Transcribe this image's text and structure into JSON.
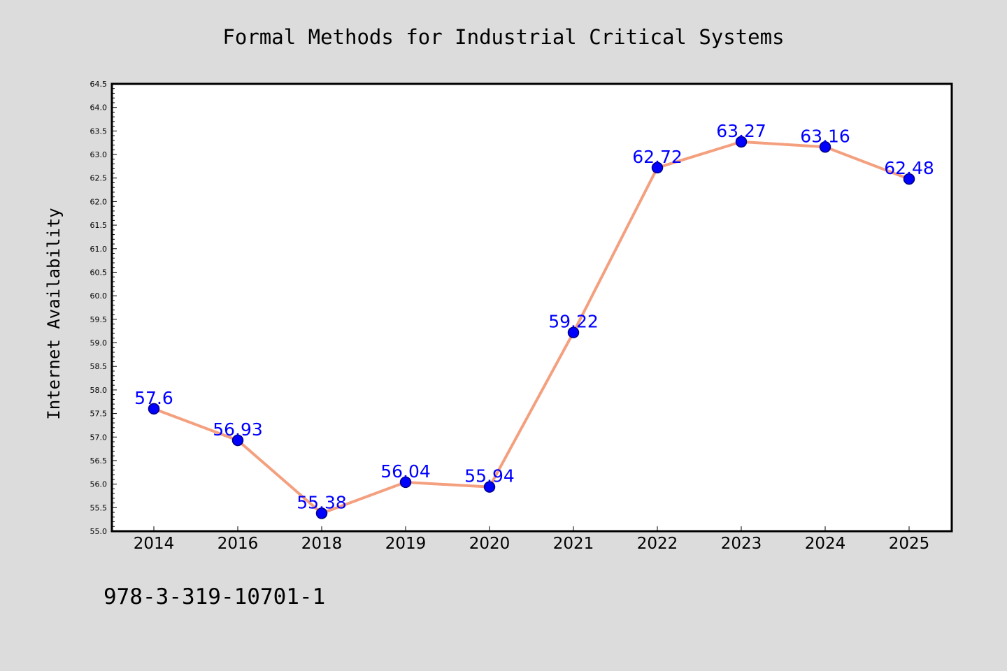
{
  "colors": {
    "background": "#dcdcdc",
    "plot_background": "#ffffff",
    "line": "#f4a07f",
    "marker_fill": "#0000ff",
    "marker_edge": "#000080",
    "data_label": "#0000ff"
  },
  "footnote": "978-3-319-10701-1",
  "chart_data": {
    "type": "line",
    "title": "Formal Methods for Industrial Critical Systems",
    "xlabel": "",
    "ylabel": "Internet Availability",
    "categories": [
      "2014",
      "2016",
      "2018",
      "2019",
      "2020",
      "2021",
      "2022",
      "2023",
      "2024",
      "2025"
    ],
    "series": [
      {
        "values": [
          57.6,
          56.93,
          55.38,
          56.04,
          55.94,
          59.22,
          62.72,
          63.27,
          63.16,
          62.48
        ],
        "labels": [
          "57.6",
          "56.93",
          "55.38",
          "56.04",
          "55.94",
          "59.22",
          "62.72",
          "63.27",
          "63.16",
          "62.48"
        ]
      }
    ],
    "ylim": [
      55.0,
      64.5
    ],
    "yticks": [
      "55.0",
      "55.5",
      "56.0",
      "56.5",
      "57.0",
      "57.5",
      "58.0",
      "58.5",
      "59.0",
      "59.5",
      "60.0",
      "60.5",
      "61.0",
      "61.5",
      "62.0",
      "62.5",
      "63.0",
      "63.5",
      "64.0",
      "64.5"
    ],
    "grid": false,
    "legend": "none"
  }
}
